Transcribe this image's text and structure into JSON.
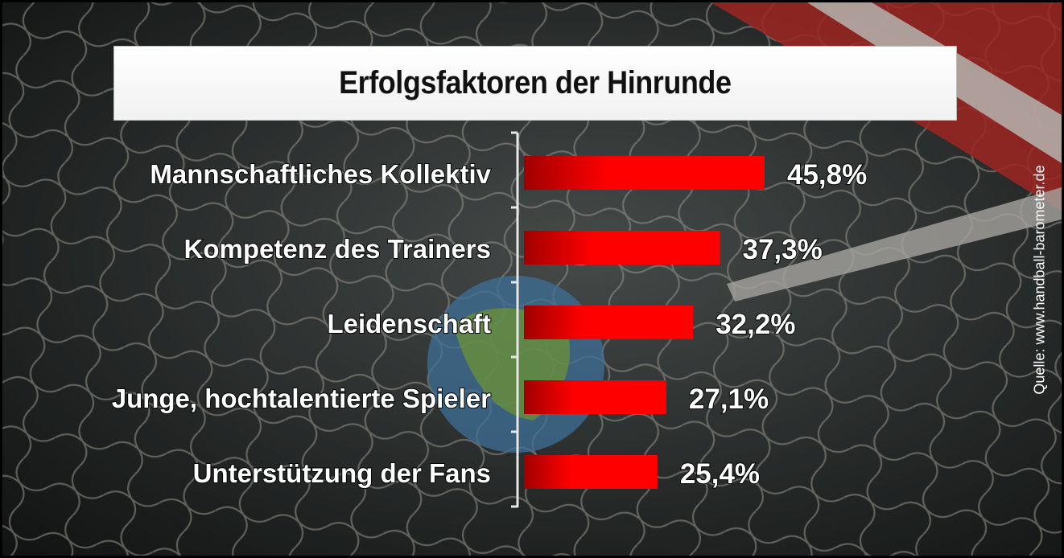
{
  "chart_data": {
    "type": "bar",
    "orientation": "horizontal",
    "title": "Erfolgsfaktoren der Hinrunde",
    "categories": [
      "Mannschaftliches Kollektiv",
      "Kompetenz des Trainers",
      "Leidenschaft",
      "Junge, hochtalentierte Spieler",
      "Unterstützung der Fans"
    ],
    "values": [
      45.8,
      37.3,
      32.2,
      27.1,
      25.4
    ],
    "value_labels": [
      "45,8%",
      "37,3%",
      "32,2%",
      "27,1%",
      "25,4%"
    ],
    "unit": "%",
    "xlim": [
      0,
      45.8
    ],
    "grid": false,
    "legend": "none",
    "bar_color": "#ff0000",
    "bar_color_dark": "#a00000"
  },
  "source": "Quelle: www.handball-barometer.de"
}
